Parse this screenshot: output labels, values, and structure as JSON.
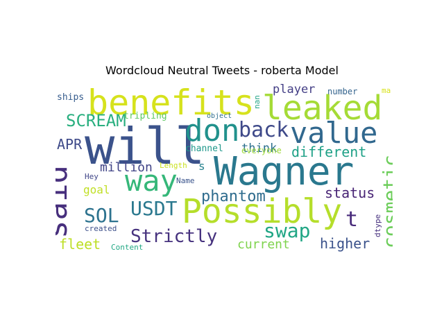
{
  "title": "Wordcloud Neutral Tweets - roberta Model",
  "words": [
    {
      "text": "Wagner",
      "color": "#2a788e"
    },
    {
      "text": "will",
      "color": "#3b528b"
    },
    {
      "text": "benefits",
      "color": "#d6e21d"
    },
    {
      "text": "Possibly",
      "color": "#b5de2b"
    },
    {
      "text": "leaked",
      "color": "#a5db36"
    },
    {
      "text": "value",
      "color": "#31688e"
    },
    {
      "text": "said",
      "color": "#472f7d"
    },
    {
      "text": "don",
      "color": "#21918c"
    },
    {
      "text": "way",
      "color": "#35b779"
    },
    {
      "text": "back",
      "color": "#3e4989"
    },
    {
      "text": "cosmetic",
      "color": "#6ccd5a"
    },
    {
      "text": "USDT",
      "color": "#2a788e"
    },
    {
      "text": "SOL",
      "color": "#2c728e"
    },
    {
      "text": "Strictly",
      "color": "#46327e"
    },
    {
      "text": "swap",
      "color": "#21a685"
    },
    {
      "text": "t",
      "color": "#472a7a"
    },
    {
      "text": "SCREAM",
      "color": "#29af7f"
    },
    {
      "text": "phantom",
      "color": "#2f6c8e"
    },
    {
      "text": "different",
      "color": "#1fa187"
    },
    {
      "text": "status",
      "color": "#482475"
    },
    {
      "text": "higher",
      "color": "#3b528b"
    },
    {
      "text": "million",
      "color": "#414487"
    },
    {
      "text": "APR",
      "color": "#3e4a89"
    },
    {
      "text": "fleet",
      "color": "#bddf26"
    },
    {
      "text": "current",
      "color": "#7fd34e"
    },
    {
      "text": "player",
      "color": "#433e85"
    },
    {
      "text": "think",
      "color": "#2d708e"
    },
    {
      "text": "goal",
      "color": "#c0df25"
    },
    {
      "text": "s",
      "color": "#26828e"
    },
    {
      "text": "channel",
      "color": "#1f988b"
    },
    {
      "text": "tripling",
      "color": "#5ec962"
    },
    {
      "text": "everyone",
      "color": "#9fda3a"
    },
    {
      "text": "ships",
      "color": "#365c8d"
    },
    {
      "text": "number",
      "color": "#33638d"
    },
    {
      "text": "ma",
      "color": "#d8e219"
    },
    {
      "text": "nan",
      "color": "#20a386"
    },
    {
      "text": "Length",
      "color": "#cae11f"
    },
    {
      "text": "Hey",
      "color": "#404688"
    },
    {
      "text": "Name",
      "color": "#3a548c"
    },
    {
      "text": "object",
      "color": "#2e6e8e"
    },
    {
      "text": "dtype",
      "color": "#46307e"
    },
    {
      "text": "created",
      "color": "#3c4f8a"
    },
    {
      "text": "Content",
      "color": "#22a884"
    }
  ]
}
